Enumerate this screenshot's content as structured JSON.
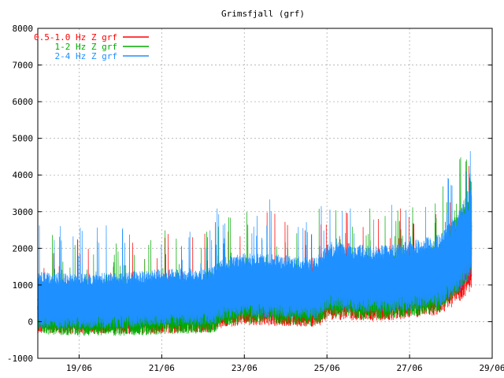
{
  "chart_data": {
    "type": "line",
    "title": "Grimsfjall (grf)",
    "xlabel": "",
    "ylabel": "",
    "ylim": [
      -1000,
      8000
    ],
    "yticks": [
      -1000,
      0,
      1000,
      2000,
      3000,
      4000,
      5000,
      6000,
      7000,
      8000
    ],
    "xlim": [
      "18/06",
      "29/06"
    ],
    "xticks": [
      "19/06",
      "21/06",
      "23/06",
      "25/06",
      "27/06",
      "29/06"
    ],
    "grid": true,
    "legend_position": "top-left",
    "series": [
      {
        "name": "0.5-1.0 Hz Z grf",
        "color": "#ff0000",
        "x": [
          "18/06",
          "19/06",
          "20/06",
          "21/06",
          "22/06",
          "22/12",
          "23/06",
          "24/06",
          "24/18",
          "25/06",
          "26/06",
          "27/06",
          "27/18",
          "28/06",
          "28/12"
        ],
        "values": [
          400,
          380,
          350,
          380,
          420,
          600,
          700,
          650,
          600,
          900,
          850,
          950,
          1100,
          1600,
          2000
        ]
      },
      {
        "name": "1-2 Hz Z grf",
        "color": "#00aa00",
        "x": [
          "18/06",
          "19/06",
          "20/06",
          "21/06",
          "22/06",
          "22/12",
          "23/06",
          "24/06",
          "24/18",
          "25/06",
          "26/06",
          "27/06",
          "27/18",
          "28/06",
          "28/12"
        ],
        "values": [
          350,
          300,
          300,
          350,
          400,
          650,
          750,
          700,
          650,
          1000,
          900,
          1000,
          1200,
          2000,
          2600
        ]
      },
      {
        "name": "2-4 Hz Z grf",
        "color": "#1e90ff",
        "x": [
          "18/06",
          "19/06",
          "20/06",
          "21/06",
          "22/06",
          "22/12",
          "23/06",
          "24/06",
          "24/18",
          "25/06",
          "26/06",
          "27/06",
          "27/18",
          "28/06",
          "28/12"
        ],
        "values": [
          600,
          550,
          600,
          650,
          700,
          900,
          1000,
          950,
          900,
          1250,
          1150,
          1250,
          1400,
          2000,
          2500
        ]
      }
    ]
  }
}
